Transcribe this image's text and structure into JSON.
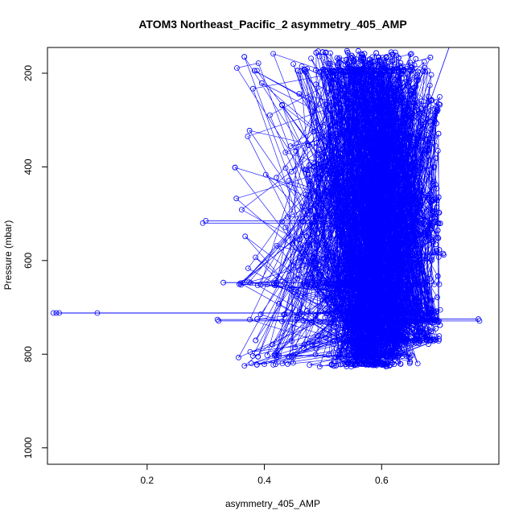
{
  "chart_data": {
    "type": "scatter",
    "title": "ATOM3 Northeast_Pacific_2 asymmetry_405_AMP",
    "xlabel": "asymmetry_405_AMP",
    "ylabel": "Pressure (mbar)",
    "xlim": [
      0.03,
      0.8
    ],
    "ylim": [
      1035,
      145
    ],
    "y_inverted": true,
    "x_ticks": [
      0.2,
      0.4,
      0.6
    ],
    "y_ticks": [
      200,
      400,
      600,
      800,
      1000
    ],
    "grid": false,
    "legend": "none",
    "marker": "open-circle",
    "connected_by_line": true,
    "color": "#0000ff",
    "series_summary": {
      "approx_points": 2400,
      "pressure_range": [
        150,
        822
      ],
      "x_core_range": [
        0.45,
        0.7
      ],
      "dense_levels_mbar": [
        195,
        650,
        712,
        730,
        770,
        803,
        822
      ]
    },
    "outliers": [
      {
        "x": 0.04,
        "y": 712
      },
      {
        "x": 0.045,
        "y": 712
      },
      {
        "x": 0.05,
        "y": 712
      },
      {
        "x": 0.115,
        "y": 712
      },
      {
        "x": 0.295,
        "y": 520
      },
      {
        "x": 0.3,
        "y": 515
      },
      {
        "x": 0.32,
        "y": 726
      },
      {
        "x": 0.322,
        "y": 729
      },
      {
        "x": 0.33,
        "y": 647
      },
      {
        "x": 0.765,
        "y": 725
      },
      {
        "x": 0.767,
        "y": 729
      },
      {
        "x": 0.706,
        "y": 588
      },
      {
        "x": 0.705,
        "y": 585
      },
      {
        "x": 0.42,
        "y": 803
      },
      {
        "x": 0.425,
        "y": 803
      }
    ]
  }
}
